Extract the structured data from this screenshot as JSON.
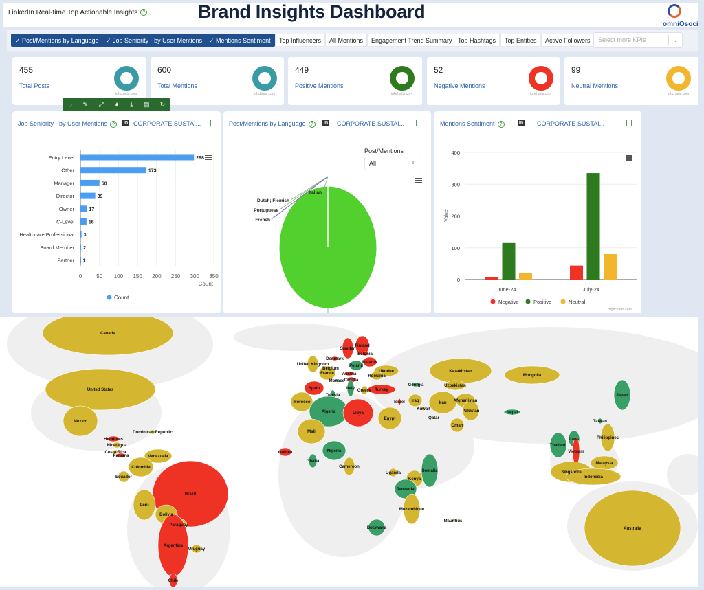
{
  "header": {
    "app_title": "LinkedIn Real-time Top Actionable Insights",
    "help": "?",
    "dashboard_title": "Brand Insights Dashboard",
    "logo_text": "omniOsocial"
  },
  "tabs": [
    {
      "label": "Post/Mentions by Language",
      "selected": true
    },
    {
      "label": "Job Seniority - by User Mentions",
      "selected": true
    },
    {
      "label": "Mentions Sentiment",
      "selected": true
    },
    {
      "label": "Top Influencers",
      "selected": false
    },
    {
      "label": "All Mentions",
      "selected": false
    },
    {
      "label": "Engagement Trend Summary",
      "selected": false
    },
    {
      "label": "Top Hashtags",
      "selected": false
    },
    {
      "label": "Top Entities",
      "selected": false
    },
    {
      "label": "Active Followers",
      "selected": false
    }
  ],
  "kpi_select": {
    "placeholder": "Select more KPIs",
    "chevron": "⌄"
  },
  "kpis": [
    {
      "value": "455",
      "label": "Total Posts",
      "color": "#3a9aa6",
      "credit": "ighcharts.com"
    },
    {
      "value": "600",
      "label": "Total Mentions",
      "color": "#3a9aa6",
      "credit": "ighcharts.com"
    },
    {
      "value": "449",
      "label": "Positive Mentions",
      "color": "#2e7a1e",
      "credit": "ighcharts.com"
    },
    {
      "value": "52",
      "label": "Negative Mentions",
      "color": "#ee3224",
      "credit": "ighcharts.com"
    },
    {
      "value": "99",
      "label": "Neutral Mentions",
      "color": "#f3b52b",
      "credit": "ighcharts.com"
    }
  ],
  "toolbar": [
    "comment-icon",
    "pencil-icon",
    "expand-icon",
    "star-icon",
    "download-icon",
    "document-icon",
    "refresh-icon"
  ],
  "cards": {
    "seniority": {
      "title": "Job Seniority - by User Mentions",
      "account": "CORPORATE SUSTAI...",
      "li": "in"
    },
    "language": {
      "title": "Post/Mentions by Language",
      "account": "CORPORATE SUSTAI...",
      "li": "in",
      "filter_label": "Post/Mentions",
      "filter_value": "All"
    },
    "sentiment": {
      "title": "Mentions Sentiment",
      "account": "CORPORATE SUSTAI...",
      "li": "in",
      "credit": "Highcharts.com"
    }
  },
  "chart_data": [
    {
      "type": "bar",
      "orientation": "horizontal",
      "categories": [
        "Entry Level",
        "Other",
        "Manager",
        "Director",
        "Owner",
        "C-Level",
        "Healthcare Professional",
        "Board Member",
        "Partner"
      ],
      "values": [
        298,
        173,
        50,
        39,
        17,
        16,
        3,
        2,
        1
      ],
      "xlabel": "Count",
      "xlim": [
        0,
        350
      ],
      "xticks": [
        0,
        50,
        100,
        150,
        200,
        250,
        300,
        350
      ],
      "legend": [
        "Count"
      ],
      "legend_position": "bottom",
      "color": "#4a9df0",
      "grid": true
    },
    {
      "type": "pie",
      "labels": [
        "Italian",
        "Dutch; Flemish",
        "Portuguese",
        "French",
        ""
      ],
      "values": [
        1,
        1,
        1,
        1,
        596
      ],
      "color": "#52d02e",
      "labels_visible": [
        "Italian",
        "Dutch; Flemish",
        "Portuguese",
        "French"
      ]
    },
    {
      "type": "bar",
      "categories": [
        "June-24",
        "July-24"
      ],
      "series": [
        {
          "name": "Negative",
          "values": [
            8,
            44
          ],
          "color": "#ee3224"
        },
        {
          "name": "Positive",
          "values": [
            115,
            335
          ],
          "color": "#2e7a1e"
        },
        {
          "name": "Neutral",
          "values": [
            20,
            80
          ],
          "color": "#f3b52b"
        }
      ],
      "ylabel": "Value",
      "ylim": [
        0,
        400
      ],
      "yticks": [
        0,
        100,
        200,
        300,
        400
      ],
      "legend_position": "bottom",
      "grid": true
    }
  ],
  "map": {
    "colors": {
      "mustard": "#d4b630",
      "red": "#ee3224",
      "green": "#3a9f66",
      "land": "#efefef"
    },
    "countries": [
      {
        "name": "Canada",
        "s": "mustard"
      },
      {
        "name": "United States",
        "s": "mustard"
      },
      {
        "name": "Mexico",
        "s": "mustard"
      },
      {
        "name": "Dominican Republic",
        "s": "mustard"
      },
      {
        "name": "Honduras",
        "s": "red"
      },
      {
        "name": "Nicaragua",
        "s": "mustard"
      },
      {
        "name": "Costa Rica",
        "s": "mustard"
      },
      {
        "name": "Panama",
        "s": "red"
      },
      {
        "name": "Venezuela",
        "s": "mustard"
      },
      {
        "name": "Colombia",
        "s": "mustard"
      },
      {
        "name": "Ecuador",
        "s": "mustard"
      },
      {
        "name": "Brazil",
        "s": "red"
      },
      {
        "name": "Peru",
        "s": "mustard"
      },
      {
        "name": "Bolivia",
        "s": "mustard"
      },
      {
        "name": "Paraguay",
        "s": "mustard"
      },
      {
        "name": "Argentina",
        "s": "red"
      },
      {
        "name": "Uruguay",
        "s": "mustard"
      },
      {
        "name": "Chile",
        "s": "red"
      },
      {
        "name": "Finland",
        "s": "red"
      },
      {
        "name": "Sweden",
        "s": "red"
      },
      {
        "name": "Estonia",
        "s": "red"
      },
      {
        "name": "Denmark",
        "s": "red"
      },
      {
        "name": "United Kingdom",
        "s": "mustard"
      },
      {
        "name": "Belgium",
        "s": "mustard"
      },
      {
        "name": "France",
        "s": "mustard"
      },
      {
        "name": "Poland",
        "s": "green"
      },
      {
        "name": "Belarus",
        "s": "red"
      },
      {
        "name": "Ukraine",
        "s": "mustard"
      },
      {
        "name": "Austria",
        "s": "red"
      },
      {
        "name": "Romania",
        "s": "mustard"
      },
      {
        "name": "Monaco",
        "s": "green"
      },
      {
        "name": "Croatia",
        "s": "red"
      },
      {
        "name": "Spain",
        "s": "red"
      },
      {
        "name": "Italy",
        "s": "green"
      },
      {
        "name": "Greece",
        "s": "mustard"
      },
      {
        "name": "Turkey",
        "s": "red"
      },
      {
        "name": "Georgia",
        "s": "green"
      },
      {
        "name": "Tunisia",
        "s": "green"
      },
      {
        "name": "Morocco",
        "s": "mustard"
      },
      {
        "name": "Algeria",
        "s": "green"
      },
      {
        "name": "Libya",
        "s": "red"
      },
      {
        "name": "Egypt",
        "s": "mustard"
      },
      {
        "name": "Israel",
        "s": "red"
      },
      {
        "name": "Iraq",
        "s": "mustard"
      },
      {
        "name": "Kuwait",
        "s": "mustard"
      },
      {
        "name": "Qatar",
        "s": "mustard"
      },
      {
        "name": "Iran",
        "s": "mustard"
      },
      {
        "name": "Kazakhstan",
        "s": "mustard"
      },
      {
        "name": "Uzbekistan",
        "s": "mustard"
      },
      {
        "name": "Afghanistan",
        "s": "mustard"
      },
      {
        "name": "Pakistan",
        "s": "mustard"
      },
      {
        "name": "Oman",
        "s": "mustard"
      },
      {
        "name": "Mongolia",
        "s": "mustard"
      },
      {
        "name": "Nepal",
        "s": "green"
      },
      {
        "name": "Japan",
        "s": "green"
      },
      {
        "name": "Taiwan",
        "s": "green"
      },
      {
        "name": "Laos",
        "s": "green"
      },
      {
        "name": "Thailand",
        "s": "green"
      },
      {
        "name": "Vietnam",
        "s": "red"
      },
      {
        "name": "Philippines",
        "s": "mustard"
      },
      {
        "name": "Malaysia",
        "s": "mustard"
      },
      {
        "name": "Singapore",
        "s": "mustard"
      },
      {
        "name": "Indonesia",
        "s": "mustard"
      },
      {
        "name": "Australia",
        "s": "mustard"
      },
      {
        "name": "Mali",
        "s": "mustard"
      },
      {
        "name": "Guinea",
        "s": "red"
      },
      {
        "name": "Ghana",
        "s": "green"
      },
      {
        "name": "Nigeria",
        "s": "green"
      },
      {
        "name": "Cameroon",
        "s": "mustard"
      },
      {
        "name": "Uganda",
        "s": "mustard"
      },
      {
        "name": "Kenya",
        "s": "mustard"
      },
      {
        "name": "Somalia",
        "s": "green"
      },
      {
        "name": "Tanzania",
        "s": "green"
      },
      {
        "name": "Mozambique",
        "s": "mustard"
      },
      {
        "name": "Botswana",
        "s": "green"
      },
      {
        "name": "Mauritius",
        "s": "mustard"
      }
    ]
  }
}
